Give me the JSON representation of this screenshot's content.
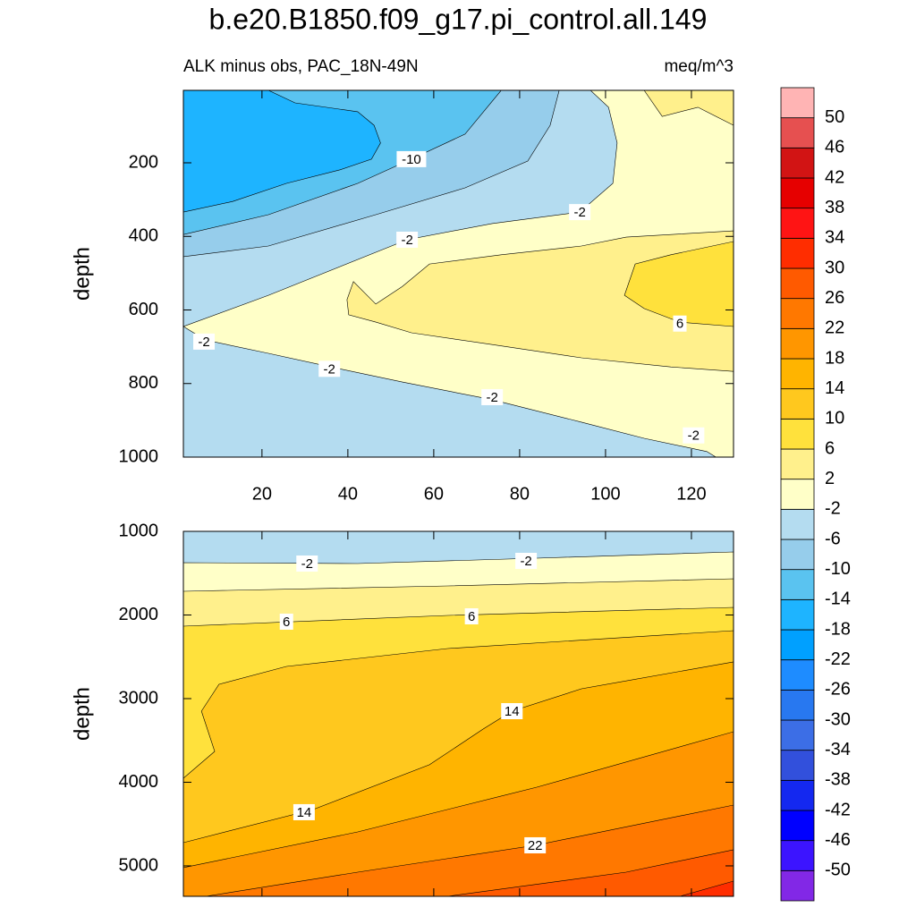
{
  "title": "b.e20.B1850.f09_g17.pi_control.all.149",
  "chart_data": [
    {
      "type": "contour",
      "subtitle": "ALK minus obs, PAC_18N-49N",
      "units": "meq/m^3",
      "ylabel": "depth",
      "xlim": [
        1.7,
        129.8
      ],
      "ylim": [
        3,
        1000
      ],
      "reverse_y": true,
      "xticks": [
        20,
        40,
        60,
        80,
        100,
        120
      ],
      "show_xtick_labels": true,
      "yticks": [
        200,
        400,
        600,
        800,
        1000
      ],
      "contours": [
        {
          "level": -14,
          "x": [
            1.7,
            13.2,
            25.7,
            38.2,
            45.5,
            47.6,
            46.1,
            42.3,
            27.7,
            21.5,
            129.8,
            129.8,
            1.7
          ],
          "y": [
            334,
            305,
            256,
            219,
            190,
            146,
            98,
            61,
            37,
            3,
            3,
            1000,
            1000
          ]
        },
        {
          "level": -10,
          "x": [
            1.7,
            21.5,
            42.3,
            54.8,
            67.3,
            75.7,
            129.8,
            129.8,
            1.7
          ],
          "y": [
            395,
            341,
            256,
            190,
            122,
            3,
            3,
            1000,
            1000
          ]
        },
        {
          "level": -6,
          "x": [
            1.7,
            21.5,
            46.5,
            67.3,
            81.9,
            87.1,
            89.2,
            129.8,
            129.8,
            1.7
          ],
          "y": [
            455,
            426,
            341,
            268,
            195,
            98,
            3,
            3,
            1000,
            1000
          ]
        },
        {
          "level": -2,
          "x": [
            1.7,
            21.5,
            53.8,
            73.6,
            94,
            101.7,
            102.7,
            100.7,
            96.5,
            129.8,
            129.8,
            125.7,
            123.6,
            109,
            94.4,
            73.6,
            52.7,
            36,
            21.5,
            6.9
          ],
          "y": [
            645,
            560,
            409,
            365,
            334,
            256,
            146,
            49,
            3,
            3,
            1000,
            1000,
            985,
            949,
            905,
            844,
            796,
            755,
            718,
            682
          ]
        },
        {
          "level": 2,
          "x": [
            39.8,
            41.3,
            46.5,
            52.7,
            59,
            75.7,
            94.4,
            104.8,
            129.8,
            129.8,
            115.2,
            94.4,
            73.6,
            54.8,
            46.5,
            40.2
          ],
          "y": [
            572,
            523,
            584,
            536,
            475,
            450,
            426,
            402,
            385,
            767,
            755,
            730,
            694,
            662,
            633,
            613
          ]
        },
        {
          "level": 2,
          "x": [
            109,
            113.2,
            121.5,
            129.8,
            129.8
          ],
          "y": [
            3,
            74,
            49,
            98,
            3
          ]
        },
        {
          "level": 6,
          "x": [
            104.4,
            106.9,
            115.2,
            129.8,
            129.8,
            117.3,
            109
          ],
          "y": [
            560,
            475,
            450,
            414,
            645,
            633,
            596
          ]
        }
      ],
      "contour_labels": [
        {
          "value": -10,
          "x": 54.8,
          "y": 190
        },
        {
          "value": -2,
          "x": 53.8,
          "y": 409
        },
        {
          "value": -2,
          "x": 94,
          "y": 334
        },
        {
          "value": -2,
          "x": 6.5,
          "y": 686
        },
        {
          "value": -2,
          "x": 35.7,
          "y": 760
        },
        {
          "value": -2,
          "x": 73.6,
          "y": 837
        },
        {
          "value": 6,
          "x": 117.3,
          "y": 637
        },
        {
          "value": -2,
          "x": 120.5,
          "y": 941
        }
      ]
    },
    {
      "type": "contour",
      "ylabel": "depth",
      "xlim": [
        1.7,
        129.8
      ],
      "ylim": [
        1000,
        5364
      ],
      "reverse_y": true,
      "xticks": [
        20,
        40,
        60,
        80,
        100,
        120
      ],
      "show_xtick_labels": false,
      "yticks": [
        1000,
        2000,
        3000,
        4000,
        5000
      ],
      "contours": [
        {
          "level": -2,
          "x": [
            1.7,
            42.3,
            84,
            129.8,
            129.8,
            1.7
          ],
          "y": [
            1374,
            1385,
            1321,
            1246,
            5364,
            5364
          ]
        },
        {
          "level": 2,
          "x": [
            1.7,
            63.2,
            129.8,
            129.8,
            1.7
          ],
          "y": [
            1717,
            1652,
            1567,
            5364,
            5364
          ]
        },
        {
          "level": 6,
          "x": [
            1.7,
            63.2,
            129.8,
            129.8,
            1.7
          ],
          "y": [
            2134,
            2005,
            1909,
            5364,
            5364
          ]
        },
        {
          "level": 10,
          "x": [
            1.7,
            9,
            5.9,
            10,
            25.7,
            63.2,
            129.8,
            129.8,
            1.7
          ],
          "y": [
            3952,
            3631,
            3150,
            2829,
            2615,
            2401,
            2187,
            5364,
            5364
          ]
        },
        {
          "level": 14,
          "x": [
            1.7,
            31.9,
            59,
            71.5,
            78.2,
            94.4,
            129.8,
            129.8,
            1.7
          ],
          "y": [
            4722,
            4326,
            3791,
            3364,
            3150,
            2882,
            2561,
            5364,
            5364
          ]
        },
        {
          "level": 18,
          "x": [
            1.7,
            42.3,
            84,
            129.8,
            129.8,
            1.7
          ],
          "y": [
            5021,
            4594,
            4059,
            3396,
            5364,
            5364
          ]
        },
        {
          "level": 22,
          "x": [
            6.9,
            42.3,
            83.6,
            129.8,
            129.8
          ],
          "y": [
            5364,
            5075,
            4754,
            4273,
            5364
          ]
        },
        {
          "level": 26,
          "x": [
            63.2,
            104.8,
            129.8,
            129.8
          ],
          "y": [
            5364,
            5075,
            4807,
            5364
          ]
        },
        {
          "level": 30,
          "x": [
            117.3,
            129.8,
            129.8
          ],
          "y": [
            5364,
            5182,
            5364
          ]
        }
      ],
      "contour_labels": [
        {
          "value": -2,
          "x": 30.5,
          "y": 1385
        },
        {
          "value": -2,
          "x": 81.5,
          "y": 1353
        },
        {
          "value": 6,
          "x": 25.7,
          "y": 2080
        },
        {
          "value": 6,
          "x": 68.8,
          "y": 2016
        },
        {
          "value": 14,
          "x": 78.2,
          "y": 3150
        },
        {
          "value": 14,
          "x": 29.8,
          "y": 4358
        },
        {
          "value": 22,
          "x": 83.6,
          "y": 4754
        }
      ]
    }
  ],
  "colorbar": {
    "levels": [
      -50,
      -46,
      -42,
      -38,
      -34,
      -30,
      -26,
      -22,
      -18,
      -14,
      -10,
      -6,
      -2,
      2,
      6,
      10,
      14,
      18,
      22,
      26,
      30,
      34,
      38,
      42,
      46,
      50
    ],
    "colors": [
      "#8228e6",
      "#3c14ff",
      "#0000ff",
      "#1428f0",
      "#3250dc",
      "#3c6ee6",
      "#2878f0",
      "#1e8cff",
      "#00a0ff",
      "#1eb4ff",
      "#5ac3f0",
      "#96cdeb",
      "#b4dcf0",
      "#ffffc8",
      "#fff08c",
      "#ffe13c",
      "#ffc81e",
      "#ffb400",
      "#ff9600",
      "#ff7800",
      "#ff5a00",
      "#ff2d00",
      "#ff1414",
      "#e60000",
      "#d21414",
      "#e65050",
      "#ffb4b4"
    ]
  }
}
